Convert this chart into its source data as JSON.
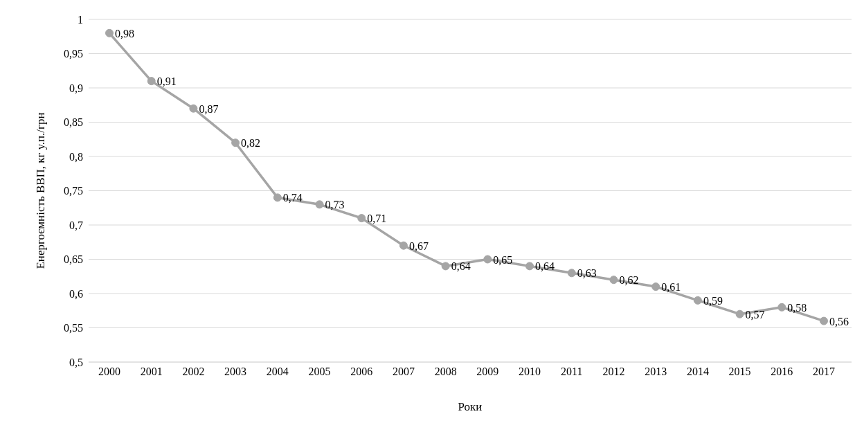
{
  "chart_data": {
    "type": "line",
    "xlabel": "Роки",
    "ylabel": "Енергоємність ВВП, кг у.п./грн",
    "categories": [
      "2000",
      "2001",
      "2002",
      "2003",
      "2004",
      "2005",
      "2006",
      "2007",
      "2008",
      "2009",
      "2010",
      "2011",
      "2012",
      "2013",
      "2014",
      "2015",
      "2016",
      "2017"
    ],
    "series": [
      {
        "color": "#a5a5a5",
        "values": [
          0.98,
          0.91,
          0.87,
          0.82,
          0.74,
          0.73,
          0.71,
          0.67,
          0.64,
          0.65,
          0.64,
          0.63,
          0.62,
          0.61,
          0.59,
          0.57,
          0.58,
          0.56
        ],
        "value_labels": [
          "0,98",
          "0,91",
          "0,87",
          "0,82",
          "0,74",
          "0,73",
          "0,71",
          "0,67",
          "0,64",
          "0,65",
          "0,64",
          "0,63",
          "0,62",
          "0,61",
          "0,59",
          "0,57",
          "0,58",
          "0,56"
        ]
      }
    ],
    "ylim": [
      0.5,
      1
    ],
    "yticks": [
      {
        "value": 0.5,
        "label": "0,5"
      },
      {
        "value": 0.55,
        "label": "0,55"
      },
      {
        "value": 0.6,
        "label": "0,6"
      },
      {
        "value": 0.65,
        "label": "0,65"
      },
      {
        "value": 0.7,
        "label": "0,7"
      },
      {
        "value": 0.75,
        "label": "0,75"
      },
      {
        "value": 0.8,
        "label": "0,8"
      },
      {
        "value": 0.85,
        "label": "0,85"
      },
      {
        "value": 0.9,
        "label": "0,9"
      },
      {
        "value": 0.95,
        "label": "0,95"
      },
      1
    ],
    "grid": "y",
    "legend": false,
    "marker": "circle",
    "line_style": "solid"
  }
}
